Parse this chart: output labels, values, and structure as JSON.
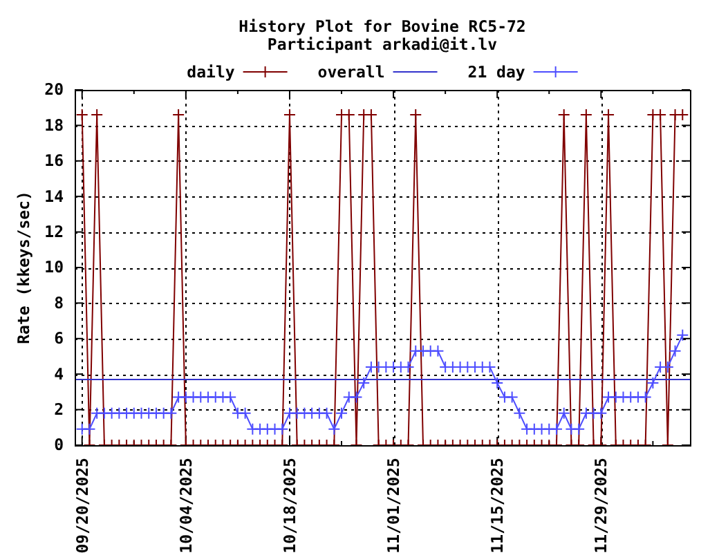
{
  "chart_data": {
    "type": "line",
    "title": "History Plot for Bovine RC5-72",
    "subtitle": "Participant arkadi@it.lv",
    "ylabel": "Rate (kkeys/sec)",
    "x": [
      "2025-09-20",
      "2025-09-21",
      "2025-09-22",
      "2025-09-23",
      "2025-09-24",
      "2025-09-25",
      "2025-09-26",
      "2025-09-27",
      "2025-09-28",
      "2025-09-29",
      "2025-09-30",
      "2025-10-01",
      "2025-10-02",
      "2025-10-03",
      "2025-10-04",
      "2025-10-05",
      "2025-10-06",
      "2025-10-07",
      "2025-10-08",
      "2025-10-09",
      "2025-10-10",
      "2025-10-11",
      "2025-10-12",
      "2025-10-13",
      "2025-10-14",
      "2025-10-15",
      "2025-10-16",
      "2025-10-17",
      "2025-10-18",
      "2025-10-19",
      "2025-10-20",
      "2025-10-21",
      "2025-10-22",
      "2025-10-23",
      "2025-10-24",
      "2025-10-25",
      "2025-10-26",
      "2025-10-27",
      "2025-10-28",
      "2025-10-29",
      "2025-10-30",
      "2025-10-31",
      "2025-11-01",
      "2025-11-02",
      "2025-11-03",
      "2025-11-04",
      "2025-11-05",
      "2025-11-06",
      "2025-11-07",
      "2025-11-08",
      "2025-11-09",
      "2025-11-10",
      "2025-11-11",
      "2025-11-12",
      "2025-11-13",
      "2025-11-14",
      "2025-11-15",
      "2025-11-16",
      "2025-11-17",
      "2025-11-18",
      "2025-11-19",
      "2025-11-20",
      "2025-11-21",
      "2025-11-22",
      "2025-11-23",
      "2025-11-24",
      "2025-11-25",
      "2025-11-26",
      "2025-11-27",
      "2025-11-28",
      "2025-11-29",
      "2025-11-30",
      "2025-12-01",
      "2025-12-02",
      "2025-12-03",
      "2025-12-04",
      "2025-12-05",
      "2025-12-06",
      "2025-12-07",
      "2025-12-08",
      "2025-12-09",
      "2025-12-10"
    ],
    "xlim": [
      "2025-09-19",
      "2025-12-11"
    ],
    "xticks": [
      {
        "value": "2025-09-20",
        "label": "09/20/2025"
      },
      {
        "value": "2025-09-27",
        "label": null
      },
      {
        "value": "2025-10-04",
        "label": "10/04/2025"
      },
      {
        "value": "2025-10-11",
        "label": null
      },
      {
        "value": "2025-10-18",
        "label": "10/18/2025"
      },
      {
        "value": "2025-10-25",
        "label": null
      },
      {
        "value": "2025-11-01",
        "label": "11/01/2025"
      },
      {
        "value": "2025-11-08",
        "label": null
      },
      {
        "value": "2025-11-15",
        "label": "11/15/2025"
      },
      {
        "value": "2025-11-22",
        "label": null
      },
      {
        "value": "2025-11-29",
        "label": "11/29/2025"
      },
      {
        "value": "2025-12-06",
        "label": null
      }
    ],
    "ylim": [
      0,
      20
    ],
    "yticks": [
      0,
      2,
      4,
      6,
      8,
      10,
      12,
      14,
      16,
      18,
      20
    ],
    "grid": true,
    "legend": "top",
    "series": [
      {
        "name": "daily",
        "color": "#800000",
        "marker": "cross",
        "values": [
          18.6,
          0,
          18.6,
          0,
          0,
          0,
          0,
          0,
          0,
          0,
          0,
          0,
          0,
          18.6,
          0,
          0,
          0,
          0,
          0,
          0,
          0,
          0,
          0,
          0,
          0,
          0,
          0,
          0,
          18.6,
          0,
          0,
          0,
          0,
          0,
          0,
          18.6,
          18.6,
          0,
          18.6,
          18.6,
          0,
          0,
          0,
          0,
          0,
          18.6,
          0,
          0,
          0,
          0,
          0,
          0,
          0,
          0,
          0,
          0,
          0,
          0,
          0,
          0,
          0,
          0,
          0,
          0,
          0,
          18.6,
          0,
          0,
          18.6,
          0,
          0,
          18.6,
          0,
          0,
          0,
          0,
          0,
          18.6,
          18.6,
          0,
          18.6,
          18.6
        ]
      },
      {
        "name": "overall",
        "color": "#3333cc",
        "marker": "none",
        "x": [
          "2025-09-19",
          "2025-12-11"
        ],
        "values": [
          3.7,
          3.7
        ]
      },
      {
        "name": "21 day",
        "color": "#4d4dff",
        "marker": "cross",
        "values": [
          0.9,
          0.9,
          1.8,
          1.8,
          1.8,
          1.8,
          1.8,
          1.8,
          1.8,
          1.8,
          1.8,
          1.8,
          1.8,
          2.7,
          2.7,
          2.7,
          2.7,
          2.7,
          2.7,
          2.7,
          2.7,
          1.8,
          1.8,
          0.9,
          0.9,
          0.9,
          0.9,
          0.9,
          1.8,
          1.8,
          1.8,
          1.8,
          1.8,
          1.8,
          0.9,
          1.8,
          2.7,
          2.7,
          3.5,
          4.4,
          4.4,
          4.4,
          4.4,
          4.4,
          4.4,
          5.3,
          5.3,
          5.3,
          5.3,
          4.4,
          4.4,
          4.4,
          4.4,
          4.4,
          4.4,
          4.4,
          3.5,
          2.7,
          2.7,
          1.8,
          0.9,
          0.9,
          0.9,
          0.9,
          0.9,
          1.8,
          0.9,
          0.9,
          1.8,
          1.8,
          1.8,
          2.7,
          2.7,
          2.7,
          2.7,
          2.7,
          2.7,
          3.5,
          4.4,
          4.4,
          5.3,
          6.2
        ]
      }
    ]
  }
}
